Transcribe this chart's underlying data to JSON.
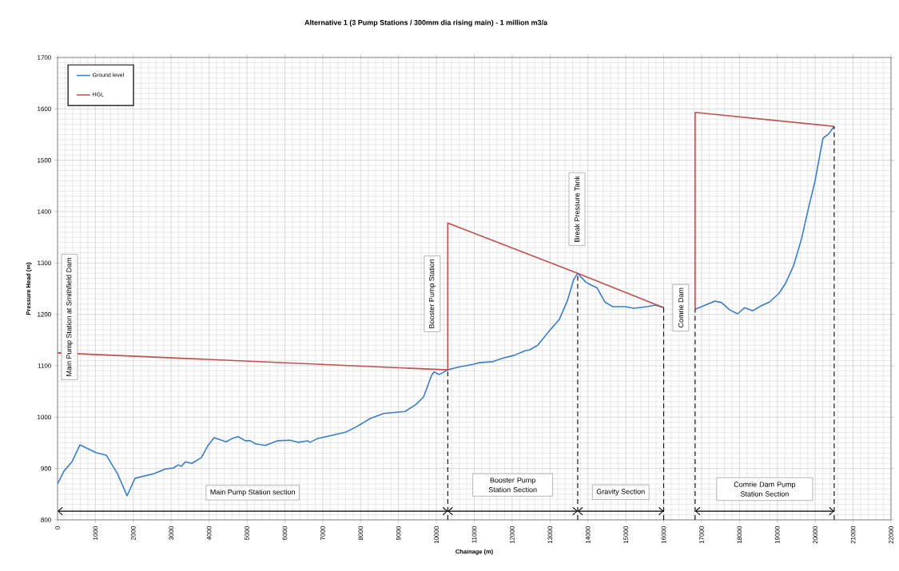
{
  "chart_data": {
    "type": "line",
    "title": "Alternative  1 (3 Pump Stations / 300mm dia rising main) - 1 million m3/a",
    "xlabel": "Chainage (m)",
    "ylabel": "Pressure Head (m)",
    "xlim": [
      0,
      22000
    ],
    "ylim": [
      800,
      1700
    ],
    "xticks": [
      0,
      1000,
      2000,
      3000,
      4000,
      5000,
      6000,
      7000,
      8000,
      9000,
      10000,
      11000,
      12000,
      13000,
      14000,
      15000,
      16000,
      17000,
      18000,
      19000,
      20000,
      21000,
      22000
    ],
    "yticks": [
      800,
      900,
      1000,
      1100,
      1200,
      1300,
      1400,
      1500,
      1600,
      1700
    ],
    "grid": true,
    "legend": "top left",
    "marker": "none",
    "line_style": "solid",
    "series": [
      {
        "name": "Ground level",
        "color": "#3a7dc9",
        "x": [
          0,
          169,
          380,
          591,
          1012,
          1286,
          1582,
          1835,
          2046,
          2552,
          2847,
          3058,
          3185,
          3269,
          3374,
          3543,
          3796,
          3965,
          4134,
          4450,
          4598,
          4767,
          4957,
          5083,
          5231,
          5484,
          5800,
          6138,
          6349,
          6601,
          6664,
          6854,
          7276,
          7614,
          7909,
          8246,
          8605,
          9174,
          9449,
          9660,
          9871,
          9934,
          10082,
          10300,
          10545,
          10988,
          11135,
          11494,
          11768,
          12042,
          12338,
          12464,
          12675,
          12970,
          13244,
          13455,
          13624,
          13730,
          13940,
          14088,
          14236,
          14447,
          14658,
          14995,
          15206,
          15564,
          15775,
          16000,
          16400,
          16830,
          17357,
          17526,
          17737,
          17948,
          18137,
          18348,
          18580,
          18791,
          19044,
          19213,
          19424,
          19635,
          19825,
          19993,
          20204,
          20352,
          20500
        ],
        "values": [
          870,
          895,
          913,
          946,
          931,
          926,
          890,
          847,
          881,
          890,
          899,
          901,
          907,
          904,
          913,
          910,
          921,
          944,
          960,
          952,
          958,
          962,
          954,
          954,
          948,
          945,
          954,
          955,
          951,
          954,
          951,
          958,
          965,
          971,
          982,
          997,
          1007,
          1011,
          1024,
          1039,
          1081,
          1088,
          1083,
          1092,
          1097,
          1103,
          1106,
          1108,
          1115,
          1120,
          1129,
          1131,
          1140,
          1167,
          1190,
          1226,
          1268,
          1280,
          1263,
          1257,
          1252,
          1224,
          1215,
          1215,
          1212,
          1215,
          1218,
          1213,
          null,
          1210,
          1226,
          1223,
          1209,
          1201,
          1213,
          1207,
          1217,
          1224,
          1241,
          1260,
          1294,
          1346,
          1408,
          1459,
          1543,
          1551,
          1566
        ]
      },
      {
        "name": "HGL",
        "color": "#c0504d",
        "x": [
          0,
          10300,
          10300,
          13730,
          16000,
          16400,
          16830,
          16830,
          20500
        ],
        "values": [
          1125,
          1092,
          1378,
          1280,
          1213,
          null,
          1210,
          1593,
          1566
        ]
      }
    ],
    "annotations": [
      "Main Pump Station at Smithfield Dam",
      "Booster Pump  Station",
      "Break  Pressure Tank",
      "Comrie  Dam",
      "Main Pump  Station section",
      "Booster Pump Station Section",
      "Gravity  Section",
      "Comrie Dam Pump Station Section"
    ]
  }
}
